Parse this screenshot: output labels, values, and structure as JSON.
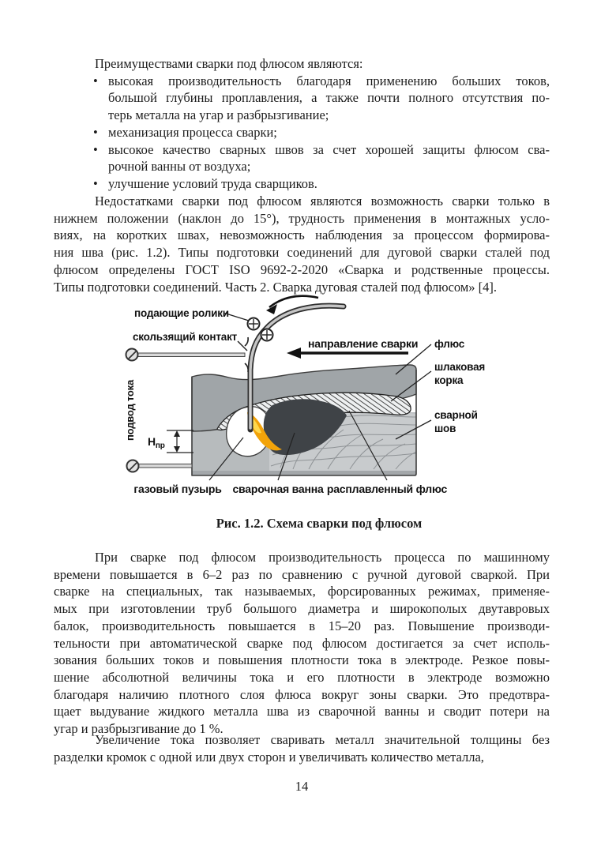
{
  "page": {
    "number": "14"
  },
  "content": {
    "intro": "Преимуществами сварки под флюсом являются:",
    "bullets": [
      {
        "lines": [
          "высокая производительность благодаря применению больших токов,",
          "большой глубины проплавления, а также почти полного отсутствия по-",
          "терь металла на угар и разбрызгивание;"
        ]
      },
      {
        "lines": [
          "механизация процесса сварки;"
        ]
      },
      {
        "lines": [
          "высокое качество сварных швов за счет хорошей защиты флюсом сва-",
          "рочной ванны от воздуха;"
        ]
      },
      {
        "lines": [
          "улучшение условий труда сварщиков."
        ]
      }
    ],
    "para2": {
      "lines": [
        "Недостатками сварки под флюсом являются возможность сварки только в",
        "нижнем положении (наклон до 15°), трудность применения в монтажных усло-",
        "виях, на коротких швах, невозможность наблюдения за процессом формирова-",
        "ния шва (рис. 1.2). Типы подготовки соединений для дуговой сварки сталей под",
        "флюсом определены ГОСТ ISO 9692-2-2020 «Сварка и родственные процессы.",
        "Типы подготовки соединений. Часть 2. Сварка дуговая сталей под флюсом» [4]."
      ]
    },
    "para3": {
      "lines": [
        "При сварке под флюсом производительность процесса по машинному",
        "времени повышается в 6–2 раз по сравнению с ручной дуговой сваркой. При",
        "сварке на специальных, так называемых, форсированных режимах, применяе-",
        "мых при изготовлении труб большого диаметра и широкополых двутавровых",
        "балок, производительность повышается в 15–20 раз. Повышение производи-",
        "тельности при автоматической сварке под флюсом достигается за счет исполь-",
        "зования больших токов и повышения плотности тока в электроде. Резкое повы-",
        "шение абсолютной величины тока и его плотности в электроде возможно",
        "благодаря наличию плотного слоя флюса вокруг зоны сварки. Это предотвра-",
        "щает выдувание жидкого металла шва из сварочной ванны и сводит потери на",
        "угар и разбрызгивание до 1 %."
      ]
    },
    "para4": {
      "lines": [
        "Увеличение тока позволяет сваривать металл значительной толщины без",
        "разделки кромок с одной или двух сторон и увеличивать количество металла,"
      ]
    }
  },
  "figure": {
    "caption": "Рис. 1.2. Схема сварки под флюсом",
    "labels": {
      "feed_rollers": "подающие ролики",
      "sliding_contact": "скользящий контакт",
      "weld_direction": "направление сварки",
      "flux": "флюс",
      "slag_crust_line1": "шлаковая",
      "slag_crust_line2": "корка",
      "weld_seam_line1": "сварной",
      "weld_seam_line2": "шов",
      "current_supply": "подвод тока",
      "penetration_main": "Н",
      "penetration_sub": "пр",
      "gas_bubble": "газовый пузырь",
      "weld_pool": "сварочная ванна",
      "molten_flux": "расплавленный флюс"
    },
    "colors": {
      "flux_grey": "#a0a5a8",
      "plate_grey": "#b7bbbd",
      "plate_edge_grey": "#a3a7aa",
      "seam_grey": "#c8cbcd",
      "seam_line_grey": "#8f9396",
      "molten_dark": "#3f4347",
      "pool_orange": "#f2a30a",
      "pool_yellow": "#ffd84d",
      "hatch_bg": "#eef0f1",
      "outline": "#3e3e3e"
    }
  }
}
